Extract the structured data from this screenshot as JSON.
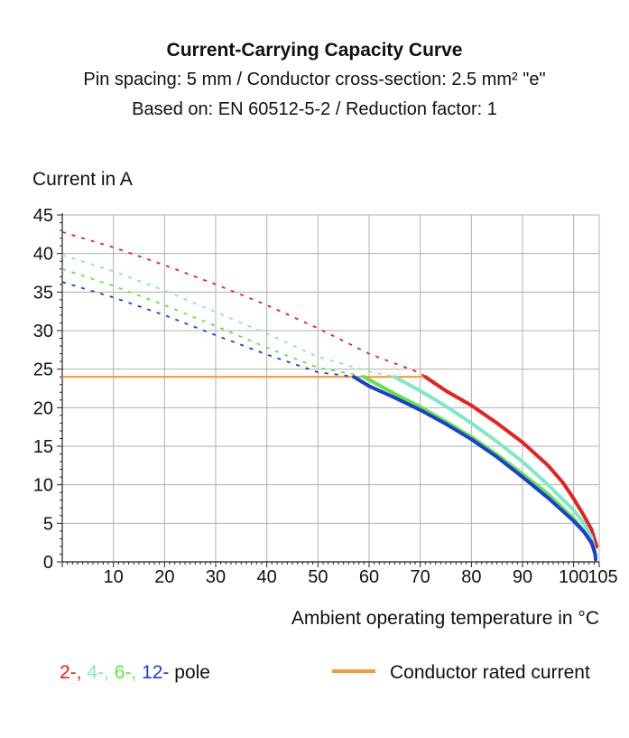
{
  "chart_data": {
    "type": "line",
    "title": "Current-Carrying Capacity Curve",
    "subtitle_1": "Pin spacing: 5 mm / Conductor cross-section: 2.5 mm² \"e\"",
    "subtitle_2": "Based on: EN 60512-5-2 / Reduction factor: 1",
    "ylabel": "Current in A",
    "xlabel": "Ambient operating temperature in °C",
    "xlim": [
      0,
      105
    ],
    "ylim": [
      0,
      45
    ],
    "x_ticks": [
      "10",
      "20",
      "30",
      "40",
      "50",
      "60",
      "70",
      "80",
      "90",
      "100",
      "105"
    ],
    "y_ticks": [
      "0",
      "5",
      "10",
      "15",
      "20",
      "25",
      "30",
      "35",
      "40",
      "45"
    ],
    "grid": true,
    "series": [
      {
        "name": "2-",
        "color": "#e8201e",
        "dashed": {
          "x": [
            0,
            10,
            20,
            30,
            40,
            50,
            60,
            70,
            71
          ],
          "y": [
            42.8,
            40.8,
            38.5,
            36.0,
            33.3,
            30.3,
            27.0,
            24.5,
            24.0
          ]
        },
        "solid": {
          "x": [
            71,
            75,
            80,
            85,
            90,
            95,
            98,
            100,
            102,
            103.5,
            104.5
          ],
          "y": [
            24.0,
            22.2,
            20.3,
            18.0,
            15.5,
            12.5,
            10.2,
            8.2,
            6.0,
            4.2,
            2.0
          ]
        }
      },
      {
        "name": "4-",
        "color": "#7ee8c8",
        "dashed": {
          "x": [
            0,
            10,
            20,
            30,
            40,
            50,
            60,
            65
          ],
          "y": [
            39.8,
            37.7,
            35.2,
            32.4,
            29.6,
            26.6,
            24.7,
            24.0
          ]
        },
        "solid": {
          "x": [
            65,
            70,
            75,
            80,
            85,
            90,
            95,
            100,
            102,
            103.5,
            104.2
          ],
          "y": [
            24.0,
            22.2,
            20.2,
            18.0,
            15.6,
            13.0,
            10.0,
            6.7,
            5.0,
            3.2,
            1.2
          ]
        }
      },
      {
        "name": "6-",
        "color": "#5ee63a",
        "dashed": {
          "x": [
            0,
            10,
            20,
            30,
            40,
            50,
            58,
            59
          ],
          "y": [
            38.0,
            35.8,
            33.3,
            30.6,
            27.8,
            25.2,
            24.2,
            24.0
          ]
        },
        "solid": {
          "x": [
            59,
            65,
            70,
            75,
            80,
            85,
            90,
            95,
            100,
            102,
            104,
            104.3
          ],
          "y": [
            24.0,
            21.8,
            20.1,
            18.2,
            16.2,
            13.9,
            11.4,
            8.8,
            5.6,
            4.0,
            1.8,
            0.8
          ]
        }
      },
      {
        "name": "12-",
        "color": "#1a3ed8",
        "dashed": {
          "x": [
            0,
            10,
            20,
            30,
            40,
            50,
            55,
            57
          ],
          "y": [
            36.3,
            34.3,
            32.0,
            29.4,
            26.9,
            24.6,
            24.2,
            24.0
          ]
        },
        "solid": {
          "x": [
            57,
            60,
            65,
            70,
            75,
            80,
            85,
            90,
            95,
            100,
            102,
            103.5,
            104.2,
            104.3
          ],
          "y": [
            24.0,
            22.8,
            21.3,
            19.7,
            17.9,
            15.9,
            13.6,
            11.0,
            8.3,
            5.3,
            3.9,
            2.5,
            1.0,
            0.3
          ]
        }
      }
    ],
    "rated_current": {
      "name": "Conductor rated current",
      "color": "#f59a3a",
      "x": [
        0,
        71
      ],
      "y": [
        24,
        24
      ]
    },
    "legend": {
      "poles": [
        {
          "label": "2-,",
          "color": "#e8201e"
        },
        {
          "label": "4-,",
          "color": "#7ee8c8"
        },
        {
          "label": "6-,",
          "color": "#5ee63a"
        },
        {
          "label": "12-",
          "color": "#1a3ed8"
        }
      ],
      "pole_suffix": "pole",
      "rated_label": "Conductor rated current",
      "rated_color": "#f59a3a"
    }
  }
}
